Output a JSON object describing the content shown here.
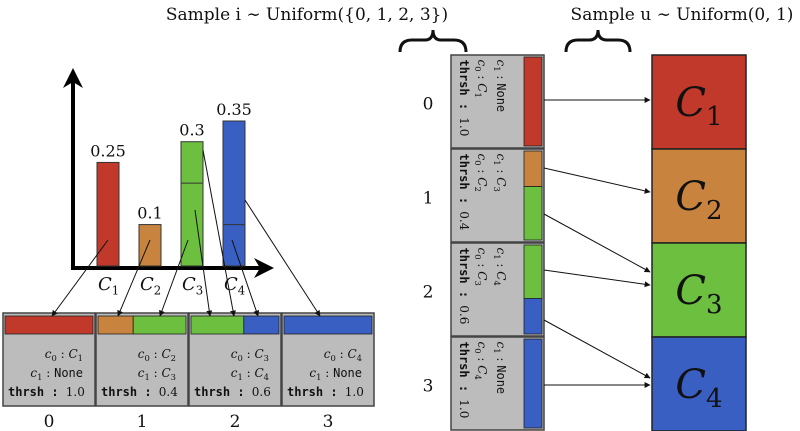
{
  "header": {
    "left_title": "Sample i ∼ Uniform({0, 1, 2, 3})",
    "right_title": "Sample u ∼ Uniform(0, 1)"
  },
  "colors": {
    "c1": "#c0392b",
    "c2": "#c8843e",
    "c3": "#6cbf3f",
    "c4": "#3a5fc2",
    "panel": "#bcbcbc",
    "panel_border": "#444444"
  },
  "chart_data": {
    "type": "bar",
    "categories": [
      "C1",
      "C2",
      "C3",
      "C4"
    ],
    "values": [
      0.25,
      0.1,
      0.3,
      0.35
    ],
    "value_labels": [
      "0.25",
      "0.1",
      "0.3",
      "0.35"
    ],
    "ylim": [
      0,
      0.45
    ],
    "stacked_splits": [
      [],
      [],
      [
        0.2
      ],
      [
        0.1
      ]
    ]
  },
  "bucket_table": {
    "indices": [
      "0",
      "1",
      "2",
      "3"
    ],
    "buckets": [
      {
        "c0": "c0 : C1",
        "c1": "c1 : None",
        "thresh": "thrsh : 1.0",
        "fill": [
          [
            "c1",
            1.0
          ]
        ]
      },
      {
        "c0": "c0 : C2",
        "c1": "c1 : C3",
        "thresh": "thrsh : 0.4",
        "fill": [
          [
            "c2",
            0.4
          ],
          [
            "c3",
            0.6
          ]
        ]
      },
      {
        "c0": "c0 : C3",
        "c1": "c1 : C4",
        "thresh": "thrsh : 0.6",
        "fill": [
          [
            "c3",
            0.6
          ],
          [
            "c4",
            0.4
          ]
        ]
      },
      {
        "c0": "c0 : C4",
        "c1": "c1 : None",
        "thresh": "thrsh : 1.0",
        "fill": [
          [
            "c4",
            1.0
          ]
        ]
      }
    ]
  },
  "outcomes": [
    "C1",
    "C2",
    "C3",
    "C4"
  ]
}
